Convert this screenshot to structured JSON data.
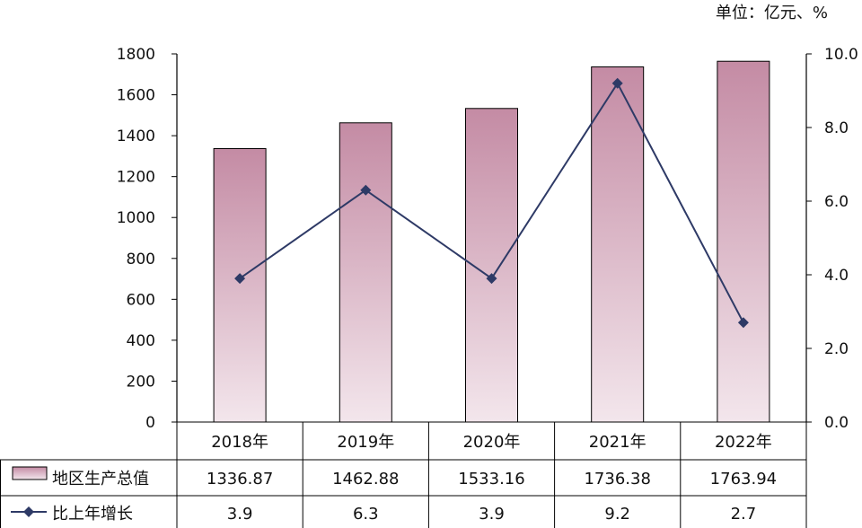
{
  "unit_label": "单位：亿元、%",
  "chart_data": {
    "type": "bar",
    "categories": [
      "2018年",
      "2019年",
      "2020年",
      "2021年",
      "2022年"
    ],
    "series": [
      {
        "name": "地区生产总值",
        "type": "bar",
        "axis": "left",
        "values": [
          1336.87,
          1462.88,
          1533.16,
          1736.38,
          1763.94
        ],
        "value_labels": [
          "1336.87",
          "1462.88",
          "1533.16",
          "1736.38",
          "1763.94"
        ]
      },
      {
        "name": "比上年增长",
        "type": "line",
        "axis": "right",
        "values": [
          3.9,
          6.3,
          3.9,
          9.2,
          2.7
        ],
        "value_labels": [
          "3.9",
          "6.3",
          "3.9",
          "9.2",
          "2.7"
        ]
      }
    ],
    "left_axis": {
      "ylim": [
        0,
        1800
      ],
      "ticks": [
        "0",
        "200",
        "400",
        "600",
        "800",
        "1000",
        "1200",
        "1400",
        "1600",
        "1800"
      ]
    },
    "right_axis": {
      "ylim": [
        0,
        10
      ],
      "ticks": [
        "0.0",
        "2.0",
        "4.0",
        "6.0",
        "8.0",
        "10.0"
      ]
    },
    "legend": "data-table",
    "grid": false
  },
  "colors": {
    "bar_top": "#c48ba4",
    "bar_bottom": "#f3e6ec",
    "line": "#2e3a66",
    "axis": "#000000"
  }
}
